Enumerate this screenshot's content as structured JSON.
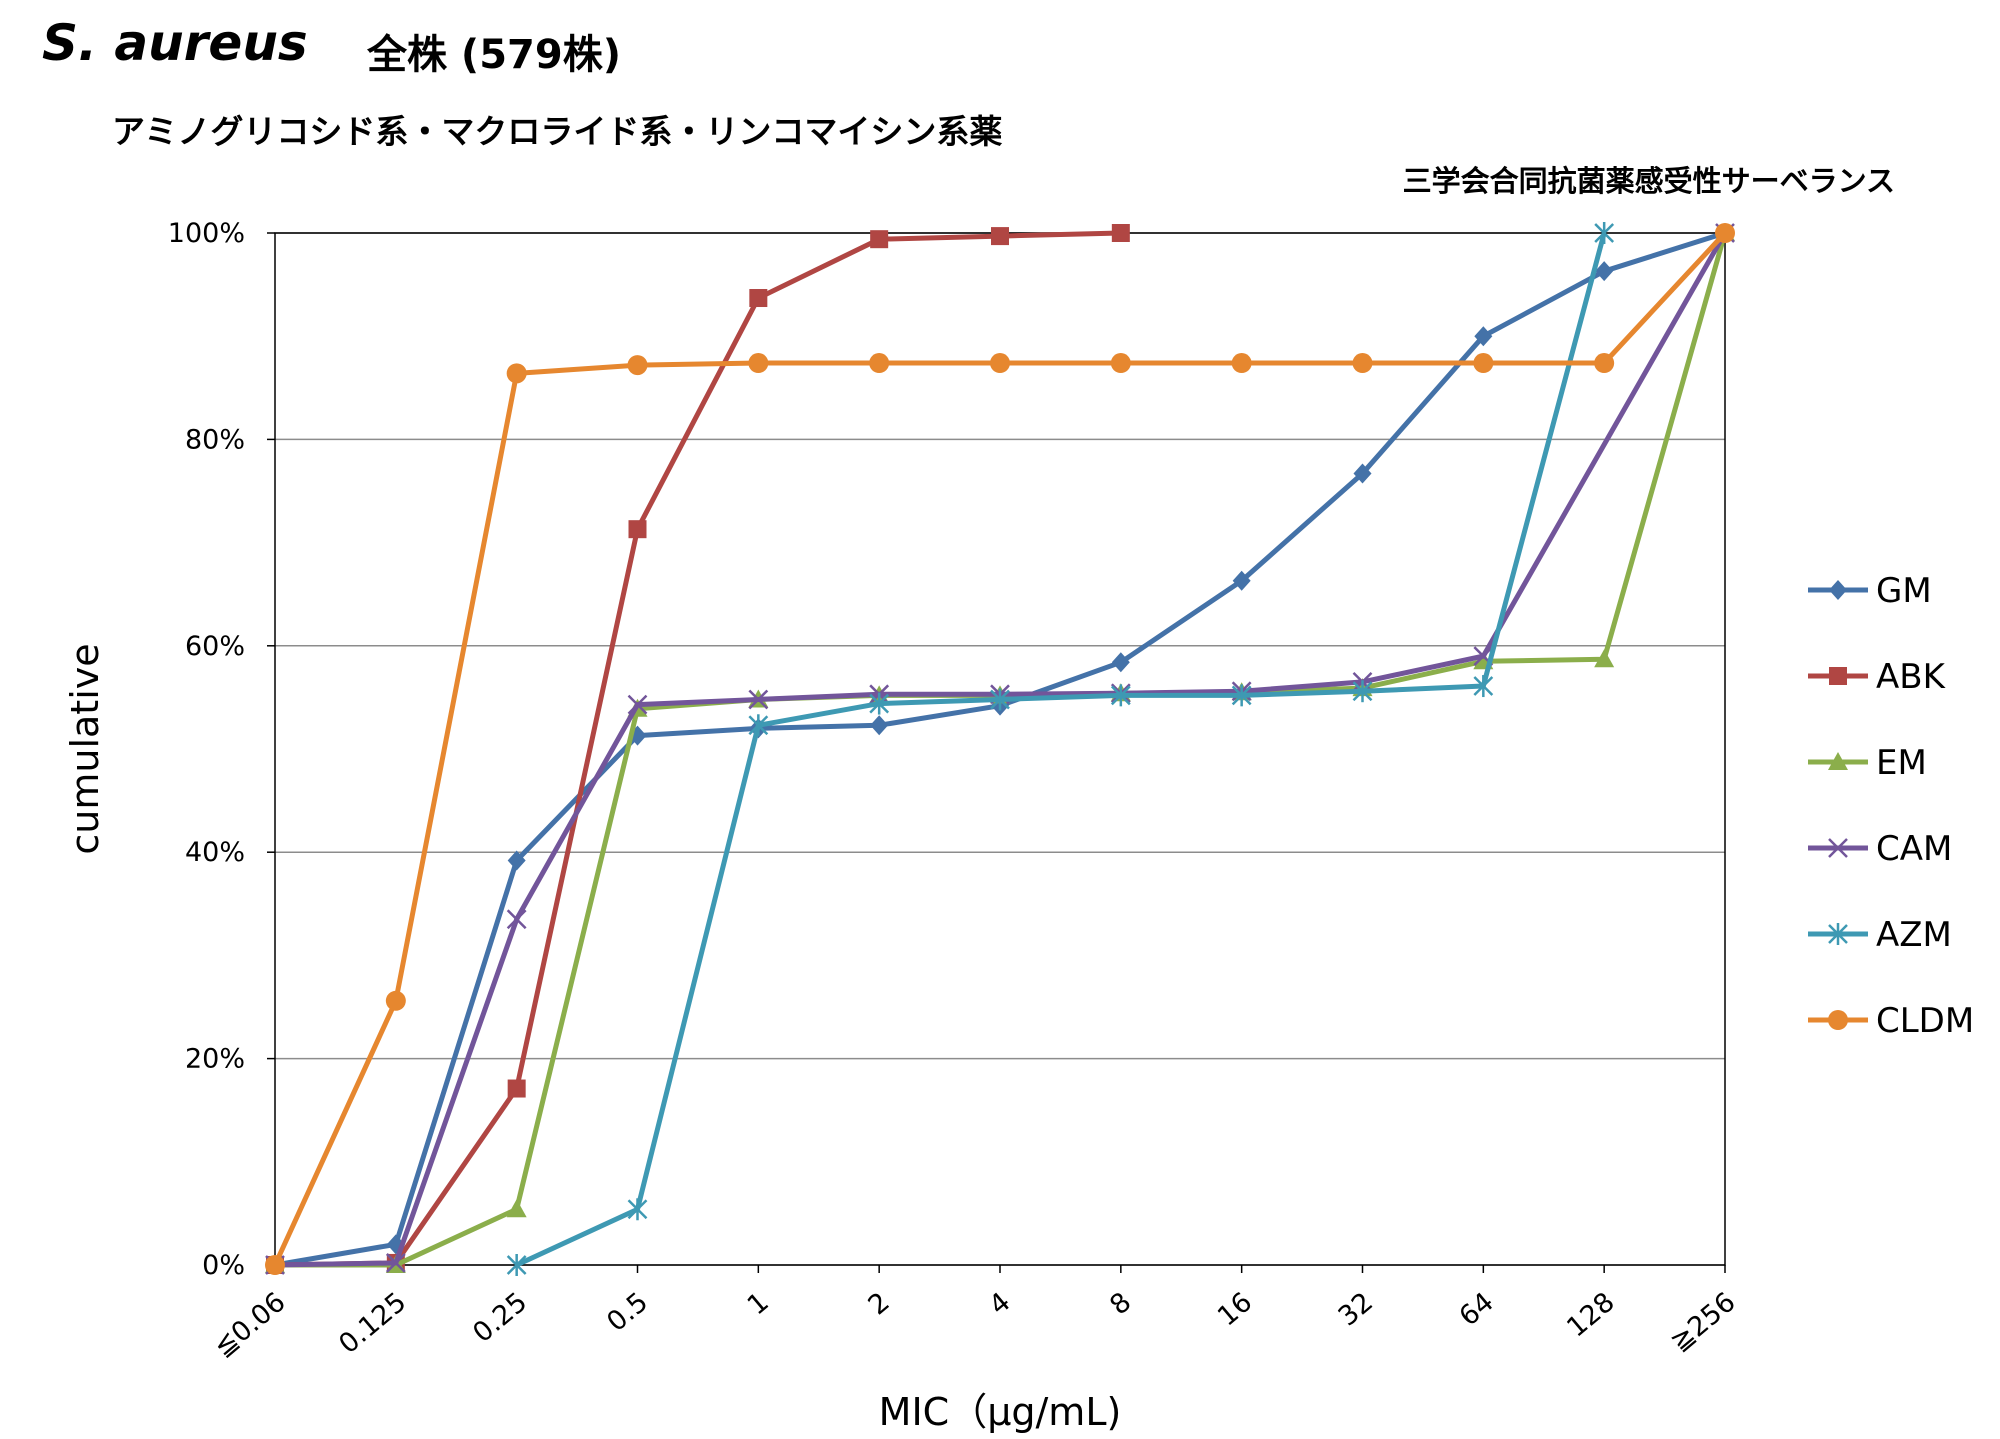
{
  "header": {
    "species": "S. aureus",
    "strains": "全株 (579株)",
    "drug_classes": "アミノグリコシド系・マクロライド系・リンコマイシン系薬",
    "source": "三学会合同抗菌薬感受性サーベランス"
  },
  "chart_data": {
    "type": "line",
    "title": "S. aureus 全株 (579株)",
    "subtitle": "アミノグリコシド系・マクロライド系・リンコマイシン系薬",
    "xlabel": "MIC（μg/mL)",
    "ylabel": "cumulative",
    "categories": [
      "≦0.06",
      "0.125",
      "0.25",
      "0.5",
      "1",
      "2",
      "4",
      "8",
      "16",
      "32",
      "64",
      "128",
      "≧256"
    ],
    "ylim": [
      0,
      100
    ],
    "yticks": [
      0,
      20,
      40,
      60,
      80,
      100
    ],
    "ytick_labels": [
      "0%",
      "20%",
      "40%",
      "60%",
      "80%",
      "100%"
    ],
    "grid": true,
    "legend_position": "right",
    "series": [
      {
        "name": "GM",
        "color": "#4472A8",
        "marker": "diamond",
        "values": [
          0,
          2,
          39.2,
          51.3,
          52,
          52.3,
          54.2,
          58.4,
          66.3,
          76.7,
          90,
          96.3,
          100
        ]
      },
      {
        "name": "ABK",
        "color": "#B04643",
        "marker": "square",
        "values": [
          0,
          0.2,
          17.1,
          71.3,
          93.7,
          99.4,
          99.7,
          100,
          null,
          null,
          null,
          null,
          null
        ]
      },
      {
        "name": "EM",
        "color": "#8BAE4B",
        "marker": "triangle",
        "values": [
          0,
          0,
          5.4,
          53.9,
          54.8,
          55.2,
          55.2,
          55.4,
          55.5,
          55.9,
          58.5,
          58.7,
          100
        ]
      },
      {
        "name": "CAM",
        "color": "#72559A",
        "marker": "x",
        "values": [
          0,
          0.2,
          33.5,
          54.3,
          54.8,
          55.3,
          55.3,
          55.4,
          55.6,
          56.5,
          59,
          null,
          100
        ]
      },
      {
        "name": "AZM",
        "color": "#3E99B3",
        "marker": "asterisk",
        "values": [
          null,
          null,
          0,
          5.4,
          52.3,
          54.4,
          54.8,
          55.2,
          55.2,
          55.6,
          56.1,
          100,
          null
        ]
      },
      {
        "name": "CLDM",
        "color": "#E6872F",
        "marker": "circle",
        "values": [
          0,
          25.6,
          86.4,
          87.2,
          87.4,
          87.4,
          87.4,
          87.4,
          87.4,
          87.4,
          87.4,
          87.4,
          100
        ]
      }
    ]
  }
}
